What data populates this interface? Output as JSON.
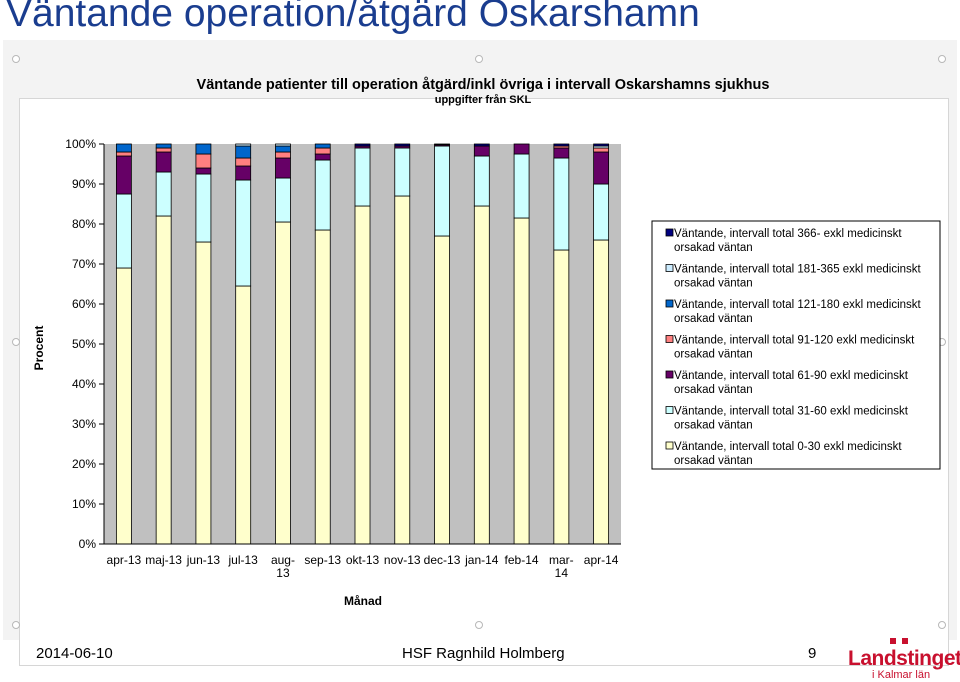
{
  "slide": {
    "title": "Väntande operation/åtgärd Oskarshamn",
    "date": "2014-06-10",
    "author": "HSF Ragnhild Holmberg",
    "page_number": "9",
    "logo_main": "Landstinget",
    "logo_sub": "i Kalmar län"
  },
  "chart_data": {
    "type": "bar",
    "stacked": true,
    "percent": true,
    "title": "Väntande patienter till operation åtgärd/inkl övriga i intervall Oskarshamns sjukhus",
    "subtitle": "uppgifter från SKL",
    "xlabel": "Månad",
    "ylabel": "Procent",
    "ylim": [
      0,
      100
    ],
    "yticks": [
      "0%",
      "10%",
      "20%",
      "30%",
      "40%",
      "50%",
      "60%",
      "70%",
      "80%",
      "90%",
      "100%"
    ],
    "categories": [
      "apr-13",
      "maj-13",
      "jun-13",
      "jul-13",
      "aug-13",
      "sep-13",
      "okt-13",
      "nov-13",
      "dec-13",
      "jan-14",
      "feb-14",
      "mar-14",
      "apr-14"
    ],
    "category_lines": [
      [
        "apr-13"
      ],
      [
        "maj-13"
      ],
      [
        "jun-13"
      ],
      [
        "jul-13"
      ],
      [
        "aug-",
        "13"
      ],
      [
        "sep-13"
      ],
      [
        "okt-13"
      ],
      [
        "nov-13"
      ],
      [
        "dec-13"
      ],
      [
        "jan-14"
      ],
      [
        "feb-14"
      ],
      [
        "mar-",
        "14"
      ],
      [
        "apr-14"
      ]
    ],
    "legend_position": "right",
    "grid": false,
    "series": [
      {
        "name": "Väntande, intervall total 0-30 exkl medicinskt orsakad väntan",
        "legend_lines": [
          "Väntande, intervall total 0-30 exkl medicinskt",
          "orsakad väntan"
        ],
        "color": "#ffffcc",
        "values": [
          69,
          82,
          75.5,
          64.5,
          80.5,
          78.5,
          84.5,
          87,
          77,
          84.5,
          81.5,
          73.5,
          76
        ]
      },
      {
        "name": "Väntande, intervall total 31-60 exkl medicinskt orsakad väntan",
        "legend_lines": [
          "Väntande, intervall total 31-60 exkl medicinskt",
          "orsakad väntan"
        ],
        "color": "#ccffff",
        "values": [
          18.5,
          11,
          17,
          26.5,
          11,
          17.5,
          14.5,
          12,
          22.5,
          12.5,
          16,
          23,
          14
        ]
      },
      {
        "name": "Väntande, intervall total 61-90 exkl medicinskt orsakad väntan",
        "legend_lines": [
          "Väntande, intervall total 61-90 exkl medicinskt",
          "orsakad väntan"
        ],
        "color": "#660066",
        "values": [
          9.5,
          5,
          1.5,
          3.5,
          5,
          1.5,
          0.5,
          0.5,
          0.3,
          2.5,
          2.5,
          2.5,
          8
        ]
      },
      {
        "name": "Väntande, intervall total 91-120 exkl medicinskt orsakad väntan",
        "legend_lines": [
          "Väntande, intervall total 91-120 exkl medicinskt",
          "orsakad väntan"
        ],
        "color": "#ff8080",
        "values": [
          1,
          1,
          3.5,
          2,
          1.5,
          1.5,
          0,
          0,
          0,
          0,
          0,
          0.5,
          1
        ]
      },
      {
        "name": "Väntande, intervall total 121-180 exkl medicinskt orsakad väntan",
        "legend_lines": [
          "Väntande, intervall total 121-180 exkl medicinskt",
          "orsakad väntan"
        ],
        "color": "#0066cc",
        "values": [
          2,
          1,
          2.5,
          3,
          1.5,
          1,
          0,
          0,
          0,
          0,
          0,
          0,
          0
        ]
      },
      {
        "name": "Väntande, intervall total 181-365 exkl medicinskt orsakad väntan",
        "legend_lines": [
          "Väntande, intervall total 181-365 exkl medicinskt",
          "orsakad väntan"
        ],
        "color": "#ccecff",
        "values": [
          0,
          0,
          0,
          0.5,
          0.5,
          0,
          0,
          0,
          0,
          0,
          0,
          0,
          0.5
        ]
      },
      {
        "name": "Väntande, intervall total 366- exkl medicinskt orsakad väntan",
        "legend_lines": [
          "Väntande, intervall total 366- exkl medicinskt",
          "orsakad väntan"
        ],
        "color": "#000080",
        "values": [
          0,
          0,
          0,
          0,
          0,
          0,
          0.5,
          0.5,
          0.2,
          0.5,
          0,
          0.5,
          0.5
        ]
      }
    ]
  }
}
